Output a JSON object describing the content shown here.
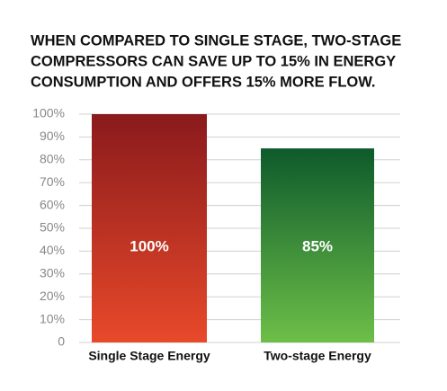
{
  "chart_data": {
    "type": "bar",
    "title": [
      "WHEN COMPARED TO SINGLE STAGE, TWO-STAGE",
      "COMPRESSORS CAN SAVE UP TO 15% IN ENERGY",
      "CONSUMPTION AND OFFERS 15% MORE FLOW."
    ],
    "categories": [
      "Single Stage Energy",
      "Two-stage Energy"
    ],
    "values": [
      100,
      85
    ],
    "value_labels": [
      "100%",
      "85%"
    ],
    "colors": [
      [
        "#8a1a1c",
        "#e8492a"
      ],
      [
        "#0e5a2c",
        "#6dbf48"
      ]
    ],
    "ylim": [
      0,
      100
    ],
    "yticks": [
      0,
      {
        "value": 10,
        "label": "10%"
      },
      {
        "value": 20,
        "label": "20%"
      },
      {
        "value": 30,
        "label": "30%"
      },
      {
        "value": 40,
        "label": "40%"
      },
      {
        "value": 50,
        "label": "50%"
      },
      {
        "value": 60,
        "label": "60%"
      },
      {
        "value": 70,
        "label": "70%"
      },
      {
        "value": 80,
        "label": "80%"
      },
      {
        "value": 90,
        "label": "90%"
      },
      {
        "value": 100,
        "label": "100%"
      }
    ],
    "grid": true
  }
}
